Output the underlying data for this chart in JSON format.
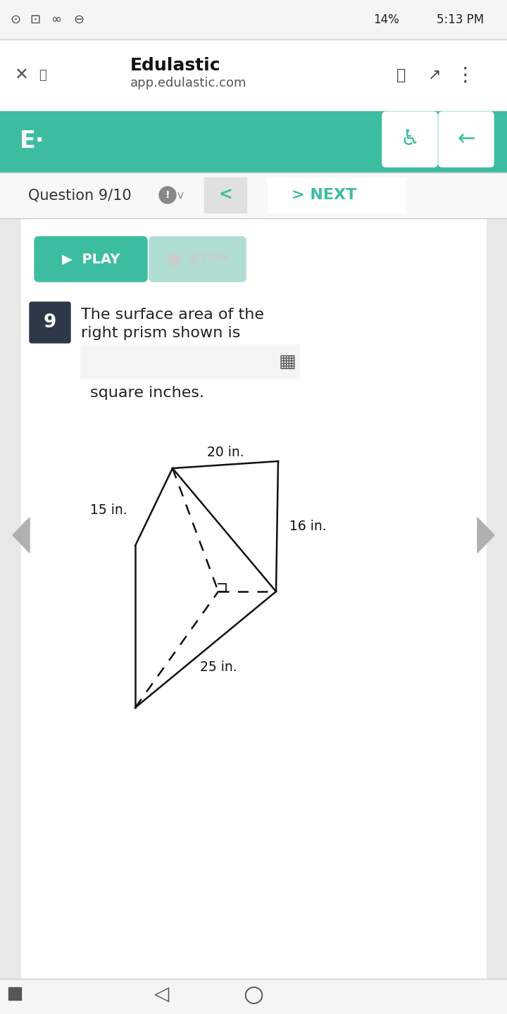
{
  "bg_color": "#f0f0f0",
  "content_bg": "#ffffff",
  "teal_color": "#3dbda0",
  "teal_light": "#b0ddd4",
  "dark_bg": "#2d3748",
  "status_bar_text": "14%  5:13 PM",
  "browser_title": "Edulastic",
  "browser_url": "app.edulastic.com",
  "nav_text": "Question 9/10",
  "next_text": "NEXT",
  "play_text": "PLAY",
  "stop_text": "STOP",
  "question_num": "9",
  "question_text_line1": "The surface area of the",
  "question_text_line2": "right prism shown is",
  "question_text_line3": "square inches.",
  "dim_20": "20 in.",
  "dim_15": "15 in.",
  "dim_16": "16 in.",
  "dim_25": "25 in.",
  "prism_color": "#111111",
  "prism_lw": 1.8
}
